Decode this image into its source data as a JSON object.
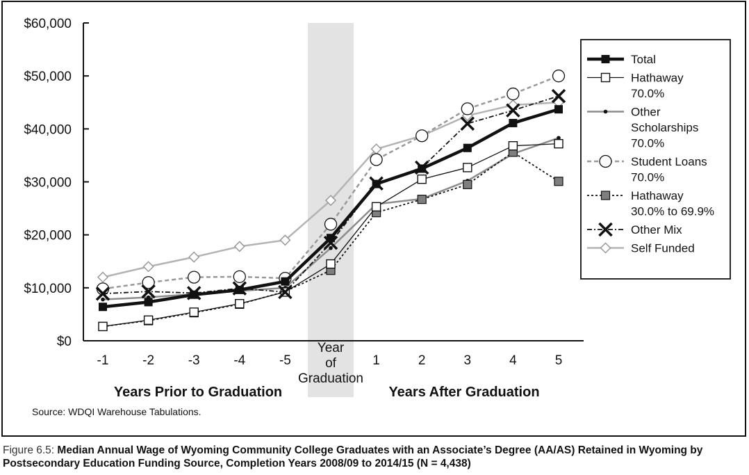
{
  "caption": {
    "label": "Figure 6.5:",
    "text": "Median Annual Wage of Wyoming Community College Graduates with an Associate’s Degree (AA/AS) Retained in Wyoming by Postsecondary Education Funding Source, Completion Years 2008/09 to 2014/15 (N = 4,438)"
  },
  "source": "Source: WDQI Warehouse Tabulations.",
  "chart_data": {
    "type": "line",
    "categories": [
      "-1",
      "-2",
      "-3",
      "-4",
      "-5",
      "Year of Graduation",
      "1",
      "2",
      "3",
      "4",
      "5"
    ],
    "x_group_labels": [
      "Years Prior to Graduation",
      "Years After Graduation"
    ],
    "highlight_category": "Year of Graduation",
    "ylim": [
      0,
      60000
    ],
    "y_ticks": [
      0,
      10000,
      20000,
      30000,
      40000,
      50000,
      60000
    ],
    "y_tick_labels": [
      "$0",
      "$10,000",
      "$20,000",
      "$30,000",
      "$40,000",
      "$50,000",
      "$60,000"
    ],
    "grid": false,
    "legend_position": "right",
    "series": [
      {
        "name": "Self Funded",
        "marker": "diamond",
        "color": "#b3b3b3",
        "dash": "",
        "width": 2.5,
        "values": [
          12000,
          14000,
          15800,
          17800,
          19000,
          26500,
          36200,
          38700,
          42500,
          44500,
          45000
        ]
      },
      {
        "name": "Student Loans 70.0%",
        "marker": "circle",
        "color": "#999999",
        "dash": "6,4",
        "width": 2.5,
        "values": [
          9800,
          11000,
          12000,
          12100,
          11800,
          22000,
          34200,
          38700,
          43800,
          46600,
          50000
        ]
      },
      {
        "name": "Other Scholarships 70.0%",
        "marker": "dot",
        "color": "#8c8c8c",
        "dash": "",
        "width": 2.5,
        "values": [
          7800,
          8200,
          8800,
          9400,
          10000,
          17500,
          25800,
          26800,
          30200,
          35300,
          38300
        ]
      },
      {
        "name": "Hathaway 30.0% to 69.9%",
        "marker": "square-gray",
        "color": "#111111",
        "dash": "3,3",
        "width": 1.8,
        "values": [
          2700,
          3800,
          5300,
          6900,
          9300,
          13300,
          24200,
          26700,
          29500,
          35600,
          30100
        ]
      },
      {
        "name": "Hathaway 70.0%",
        "marker": "square-open",
        "color": "#111111",
        "dash": "",
        "width": 1.3,
        "values": [
          2700,
          3900,
          5400,
          7000,
          9200,
          14500,
          25300,
          30500,
          32700,
          36800,
          37200
        ]
      },
      {
        "name": "Other Mix",
        "marker": "x",
        "color": "#111111",
        "dash": "7,3,2,3",
        "width": 1.8,
        "values": [
          8900,
          9300,
          9000,
          9900,
          9200,
          18500,
          29700,
          32700,
          41000,
          43500,
          46200
        ]
      },
      {
        "name": "Total",
        "marker": "square-black",
        "color": "#111111",
        "dash": "",
        "width": 4.5,
        "values": [
          6400,
          7300,
          8700,
          9600,
          11200,
          19400,
          29600,
          32500,
          36400,
          41100,
          43700
        ]
      }
    ],
    "legend_order": [
      "Total",
      "Hathaway 70.0%",
      "Other Scholarships 70.0%",
      "Student Loans 70.0%",
      "Hathaway 30.0% to 69.9%",
      "Other Mix",
      "Self Funded"
    ],
    "legend_labels": {
      "Total": [
        "Total"
      ],
      "Hathaway 70.0%": [
        "Hathaway",
        "70.0%"
      ],
      "Other Scholarships 70.0%": [
        "Other",
        "Scholarships",
        "70.0%"
      ],
      "Student Loans 70.0%": [
        "Student Loans",
        "70.0%"
      ],
      "Hathaway 30.0% to 69.9%": [
        "Hathaway",
        "30.0% to 69.9%"
      ],
      "Other Mix": [
        "Other Mix"
      ],
      "Self Funded": [
        "Self Funded"
      ]
    }
  }
}
